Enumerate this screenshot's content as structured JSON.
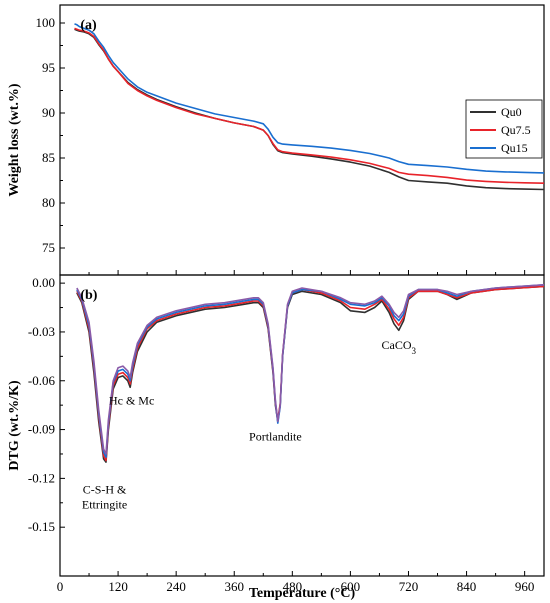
{
  "chart_data": [
    {
      "panel": "(a)",
      "type": "line",
      "title": "",
      "xlabel": "Temperature (°C)",
      "ylabel": "Weight loss (wt.%)",
      "xlim": [
        0,
        1000
      ],
      "ylim": [
        72,
        102
      ],
      "x_ticks": [
        0,
        120,
        240,
        360,
        480,
        600,
        720,
        840,
        960
      ],
      "y_ticks": [
        75,
        80,
        85,
        90,
        95,
        100
      ],
      "legend_position": "right",
      "colors": {
        "Qu0": "#303030",
        "Qu7.5": "#e8232a",
        "Qu15": "#1a6fd0"
      },
      "series": [
        {
          "name": "Qu0",
          "x": [
            30,
            35,
            40,
            50,
            60,
            70,
            80,
            90,
            100,
            110,
            120,
            140,
            160,
            180,
            200,
            240,
            280,
            320,
            360,
            400,
            420,
            430,
            440,
            450,
            460,
            480,
            520,
            560,
            600,
            640,
            680,
            700,
            720,
            760,
            800,
            840,
            880,
            920,
            960,
            1000
          ],
          "y": [
            99.3,
            99.2,
            99.1,
            99.0,
            98.8,
            98.4,
            97.6,
            96.9,
            96.0,
            95.2,
            94.6,
            93.4,
            92.6,
            92.0,
            91.5,
            90.7,
            90.0,
            89.4,
            88.9,
            88.5,
            88.1,
            87.5,
            86.5,
            85.8,
            85.6,
            85.45,
            85.2,
            84.9,
            84.55,
            84.1,
            83.4,
            82.9,
            82.5,
            82.35,
            82.2,
            81.9,
            81.7,
            81.6,
            81.55,
            81.5
          ]
        },
        {
          "name": "Qu7.5",
          "x": [
            30,
            35,
            40,
            50,
            60,
            70,
            80,
            90,
            100,
            110,
            120,
            140,
            160,
            180,
            200,
            240,
            280,
            320,
            360,
            400,
            420,
            430,
            440,
            450,
            460,
            480,
            520,
            560,
            600,
            640,
            680,
            700,
            720,
            760,
            800,
            840,
            880,
            920,
            960,
            1000
          ],
          "y": [
            99.4,
            99.3,
            99.2,
            99.1,
            98.9,
            98.5,
            97.7,
            97.0,
            96.0,
            95.2,
            94.6,
            93.3,
            92.5,
            91.9,
            91.4,
            90.6,
            89.9,
            89.4,
            88.9,
            88.5,
            88.1,
            87.5,
            86.6,
            85.9,
            85.7,
            85.55,
            85.35,
            85.1,
            84.8,
            84.4,
            83.85,
            83.4,
            83.2,
            83.05,
            82.85,
            82.55,
            82.4,
            82.3,
            82.25,
            82.2
          ]
        },
        {
          "name": "Qu15",
          "x": [
            30,
            35,
            40,
            50,
            60,
            70,
            80,
            90,
            100,
            110,
            120,
            140,
            160,
            180,
            200,
            240,
            280,
            320,
            360,
            400,
            420,
            430,
            440,
            450,
            460,
            480,
            520,
            560,
            600,
            640,
            680,
            700,
            720,
            760,
            800,
            840,
            880,
            920,
            960,
            1000
          ],
          "y": [
            99.9,
            99.8,
            99.6,
            99.4,
            99.2,
            98.8,
            98.0,
            97.3,
            96.4,
            95.6,
            95.0,
            93.8,
            92.9,
            92.3,
            91.9,
            91.1,
            90.5,
            89.9,
            89.5,
            89.1,
            88.8,
            88.2,
            87.3,
            86.7,
            86.55,
            86.45,
            86.3,
            86.1,
            85.85,
            85.5,
            85.0,
            84.6,
            84.3,
            84.15,
            84.0,
            83.75,
            83.55,
            83.45,
            83.4,
            83.35
          ]
        }
      ]
    },
    {
      "panel": "(b)",
      "type": "line",
      "title": "",
      "xlabel": "Temperature (°C)",
      "ylabel": "DTG (wt.%/K)",
      "xlim": [
        0,
        1000
      ],
      "ylim": [
        -0.18,
        0.005
      ],
      "x_ticks": [
        0,
        120,
        240,
        360,
        480,
        600,
        720,
        840,
        960
      ],
      "y_ticks": [
        0.0,
        -0.03,
        -0.06,
        -0.09,
        -0.12,
        -0.15
      ],
      "colors": {
        "Qu0": "#303030",
        "Qu7.5": "#e8232a",
        "Qu15": "#1a6fd0",
        "extra": "#8a5aa8"
      },
      "annotations": [
        {
          "text_lines": [
            "C-S-H &",
            "Ettringite"
          ],
          "x": 92,
          "y": -0.112
        },
        {
          "text": "Hc & Mc",
          "x": 148,
          "y": -0.066
        },
        {
          "text": "Portlandite",
          "x": 445,
          "y": -0.088
        },
        {
          "text": "CaCO",
          "subscript": "3",
          "x": 700,
          "y": -0.032
        }
      ],
      "series": [
        {
          "name": "Qu0",
          "x": [
            35,
            45,
            60,
            70,
            80,
            90,
            95,
            100,
            110,
            120,
            130,
            140,
            145,
            150,
            160,
            180,
            200,
            240,
            300,
            340,
            380,
            400,
            410,
            420,
            430,
            440,
            445,
            450,
            455,
            460,
            470,
            480,
            500,
            540,
            580,
            600,
            630,
            650,
            665,
            680,
            690,
            700,
            710,
            720,
            740,
            780,
            800,
            820,
            850,
            900,
            950,
            1000
          ],
          "y": [
            -0.006,
            -0.012,
            -0.03,
            -0.055,
            -0.085,
            -0.108,
            -0.11,
            -0.09,
            -0.065,
            -0.058,
            -0.057,
            -0.06,
            -0.064,
            -0.055,
            -0.042,
            -0.03,
            -0.024,
            -0.02,
            -0.016,
            -0.015,
            -0.013,
            -0.012,
            -0.012,
            -0.015,
            -0.028,
            -0.055,
            -0.075,
            -0.085,
            -0.075,
            -0.045,
            -0.015,
            -0.007,
            -0.005,
            -0.007,
            -0.012,
            -0.017,
            -0.018,
            -0.015,
            -0.011,
            -0.018,
            -0.025,
            -0.029,
            -0.023,
            -0.01,
            -0.005,
            -0.005,
            -0.007,
            -0.01,
            -0.006,
            -0.004,
            -0.003,
            -0.002
          ]
        },
        {
          "name": "Qu7.5",
          "x": [
            35,
            45,
            60,
            70,
            80,
            90,
            95,
            100,
            110,
            120,
            130,
            140,
            145,
            150,
            160,
            180,
            200,
            240,
            300,
            340,
            380,
            400,
            410,
            420,
            430,
            440,
            445,
            450,
            455,
            460,
            470,
            480,
            500,
            540,
            580,
            600,
            630,
            650,
            665,
            680,
            690,
            700,
            710,
            720,
            740,
            780,
            800,
            820,
            850,
            900,
            950,
            1000
          ],
          "y": [
            -0.005,
            -0.011,
            -0.028,
            -0.052,
            -0.082,
            -0.106,
            -0.109,
            -0.088,
            -0.063,
            -0.056,
            -0.055,
            -0.058,
            -0.062,
            -0.053,
            -0.04,
            -0.028,
            -0.023,
            -0.019,
            -0.015,
            -0.014,
            -0.012,
            -0.011,
            -0.011,
            -0.014,
            -0.027,
            -0.054,
            -0.074,
            -0.084,
            -0.074,
            -0.044,
            -0.014,
            -0.006,
            -0.004,
            -0.006,
            -0.011,
            -0.015,
            -0.016,
            -0.013,
            -0.01,
            -0.016,
            -0.022,
            -0.026,
            -0.021,
            -0.009,
            -0.005,
            -0.005,
            -0.007,
            -0.009,
            -0.006,
            -0.004,
            -0.003,
            -0.002
          ]
        },
        {
          "name": "Qu15",
          "x": [
            35,
            45,
            60,
            70,
            80,
            90,
            95,
            100,
            110,
            120,
            130,
            140,
            145,
            150,
            160,
            180,
            200,
            240,
            300,
            340,
            380,
            400,
            410,
            420,
            430,
            440,
            445,
            450,
            455,
            460,
            470,
            480,
            500,
            540,
            580,
            600,
            630,
            650,
            665,
            680,
            690,
            700,
            710,
            720,
            740,
            780,
            800,
            820,
            850,
            900,
            950,
            1000
          ],
          "y": [
            -0.004,
            -0.01,
            -0.026,
            -0.05,
            -0.08,
            -0.104,
            -0.107,
            -0.086,
            -0.061,
            -0.054,
            -0.053,
            -0.056,
            -0.06,
            -0.051,
            -0.038,
            -0.027,
            -0.022,
            -0.018,
            -0.014,
            -0.013,
            -0.011,
            -0.01,
            -0.01,
            -0.013,
            -0.026,
            -0.053,
            -0.073,
            -0.086,
            -0.076,
            -0.045,
            -0.014,
            -0.006,
            -0.004,
            -0.005,
            -0.01,
            -0.013,
            -0.014,
            -0.012,
            -0.009,
            -0.014,
            -0.02,
            -0.023,
            -0.019,
            -0.008,
            -0.004,
            -0.004,
            -0.006,
            -0.008,
            -0.005,
            -0.003,
            -0.002,
            -0.001
          ]
        },
        {
          "name": "",
          "x": [
            35,
            45,
            60,
            70,
            80,
            90,
            95,
            100,
            110,
            120,
            130,
            140,
            145,
            150,
            160,
            180,
            200,
            240,
            300,
            340,
            380,
            400,
            410,
            420,
            430,
            440,
            445,
            450,
            455,
            460,
            470,
            480,
            500,
            540,
            580,
            600,
            630,
            650,
            665,
            680,
            690,
            700,
            710,
            720,
            740,
            780,
            800,
            820,
            850,
            900,
            950,
            1000
          ],
          "y": [
            -0.003,
            -0.009,
            -0.024,
            -0.048,
            -0.078,
            -0.102,
            -0.105,
            -0.084,
            -0.06,
            -0.052,
            -0.051,
            -0.054,
            -0.058,
            -0.049,
            -0.037,
            -0.026,
            -0.021,
            -0.017,
            -0.013,
            -0.012,
            -0.01,
            -0.009,
            -0.009,
            -0.012,
            -0.025,
            -0.052,
            -0.072,
            -0.085,
            -0.075,
            -0.044,
            -0.013,
            -0.005,
            -0.003,
            -0.005,
            -0.009,
            -0.012,
            -0.013,
            -0.011,
            -0.008,
            -0.013,
            -0.018,
            -0.021,
            -0.017,
            -0.007,
            -0.004,
            -0.004,
            -0.005,
            -0.007,
            -0.005,
            -0.003,
            -0.002,
            -0.001
          ]
        }
      ]
    }
  ]
}
